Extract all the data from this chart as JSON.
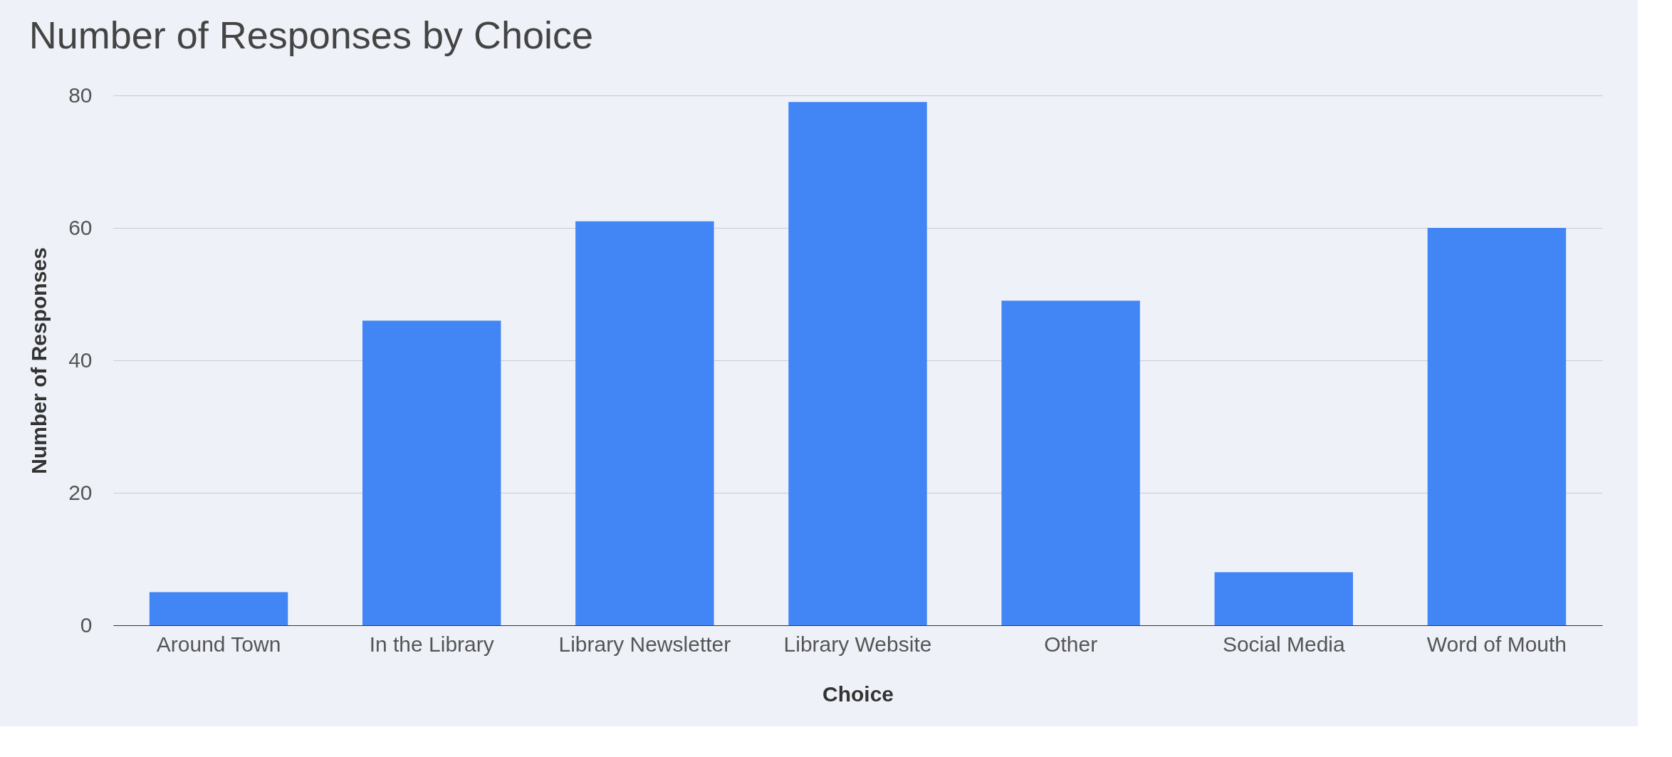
{
  "chart_data": {
    "type": "bar",
    "title": "Number of Responses by Choice",
    "xlabel": "Choice",
    "ylabel": "Number of Responses",
    "categories": [
      "Around Town",
      "In the Library",
      "Library Newsletter",
      "Library Website",
      "Other",
      "Social Media",
      "Word of Mouth"
    ],
    "values": [
      5,
      46,
      61,
      79,
      49,
      8,
      60
    ],
    "color": "#4285f4",
    "ylim": [
      0,
      80
    ],
    "yticks": [
      0,
      20,
      40,
      60,
      80
    ],
    "grid": "y"
  }
}
